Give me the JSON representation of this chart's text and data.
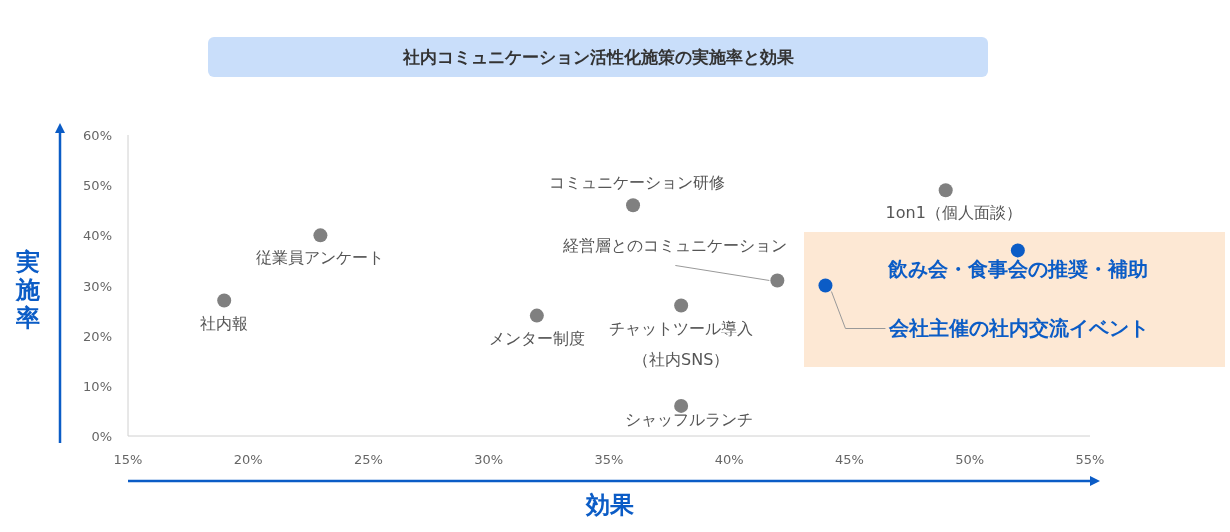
{
  "chart_data": {
    "type": "scatter",
    "title": "社内コミュニケーション活性化施策の実施率と効果",
    "xlabel": "効果",
    "ylabel": "実施率",
    "series": [
      {
        "color": "#808080",
        "x": [
          19,
          23,
          32,
          36,
          38,
          38,
          42,
          49
        ],
        "values": [
          27,
          40,
          24,
          46,
          26,
          6,
          31,
          49
        ]
      },
      {
        "color": "#0b5cc6",
        "x": [
          44,
          52
        ],
        "values": [
          30,
          37
        ]
      }
    ],
    "xlim": [
      15,
      55
    ],
    "xticks": [
      {
        "value": 15,
        "label": "15%"
      },
      {
        "value": 20,
        "label": "20%"
      },
      {
        "value": 25,
        "label": "25%"
      },
      {
        "value": 30,
        "label": "30%"
      },
      {
        "value": 35,
        "label": "35%"
      },
      {
        "value": 40,
        "label": "40%"
      },
      {
        "value": 45,
        "label": "45%"
      },
      {
        "value": 50,
        "label": "50%"
      },
      {
        "value": 55,
        "label": "55%"
      }
    ],
    "ylim": [
      0,
      60
    ],
    "yticks": [
      {
        "value": 0,
        "label": "0%"
      },
      {
        "value": 10,
        "label": "10%"
      },
      {
        "value": 20,
        "label": "20%"
      },
      {
        "value": 30,
        "label": "30%"
      },
      {
        "value": 40,
        "label": "40%"
      },
      {
        "value": 50,
        "label": "50%"
      },
      {
        "value": 60,
        "label": "60%"
      }
    ],
    "marker": "circle",
    "grid": false,
    "annotations": [
      {
        "text": "社内報",
        "x": 19,
        "y": 27
      },
      {
        "text": "従業員アンケート",
        "x": 23,
        "y": 40
      },
      {
        "text": "メンター制度",
        "x": 32,
        "y": 24
      },
      {
        "text": "コミュニケーション研修",
        "x": 36,
        "y": 46
      },
      {
        "text": "チャットツール導入",
        "x": 38,
        "y": 26
      },
      "（社内SNS）",
      {
        "text": "シャッフルランチ",
        "x": 38,
        "y": 6
      },
      {
        "text": "経営層とのコミュニケーション",
        "x": 42,
        "y": 31
      },
      {
        "text": "会社主催の社内交流イベント",
        "x": 44,
        "y": 30
      },
      {
        "text": "飲み会・食事会の推奨・補助",
        "x": 52,
        "y": 37
      },
      {
        "text": "1on1（個人面談）",
        "x": 49,
        "y": 49
      }
    ]
  }
}
